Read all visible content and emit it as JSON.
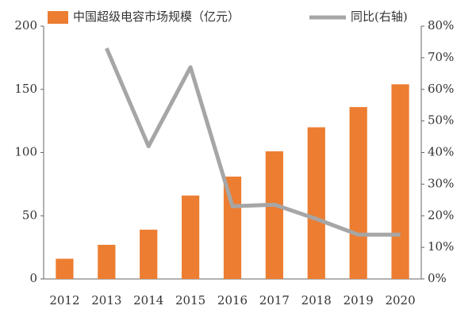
{
  "chart_data": {
    "type": "bar",
    "categories": [
      "2012",
      "2013",
      "2014",
      "2015",
      "2016",
      "2017",
      "2018",
      "2019",
      "2020"
    ],
    "series": [
      {
        "name": "中国超级电容市场规模（亿元）",
        "type": "bar",
        "color": "#ed7d31",
        "values": [
          16,
          27,
          39,
          66,
          81,
          101,
          120,
          136,
          154
        ]
      },
      {
        "name": "同比(右轴)",
        "type": "line",
        "axis": "y2",
        "color": "#a6a6a6",
        "values": [
          null,
          73,
          42,
          67,
          23,
          23.5,
          19,
          14,
          14
        ]
      }
    ],
    "ylim": [
      0,
      200
    ],
    "yticks": [
      0,
      50,
      100,
      150,
      200
    ],
    "y2lim": [
      0,
      80
    ],
    "y2ticks": [
      {
        "value": 0,
        "label": "0%"
      },
      {
        "value": 10,
        "label": "10%"
      },
      {
        "value": 20,
        "label": "20%"
      },
      {
        "value": 30,
        "label": "30%"
      },
      {
        "value": 40,
        "label": "40%"
      },
      {
        "value": 50,
        "label": "50%"
      },
      {
        "value": 60,
        "label": "60%"
      },
      {
        "value": 70,
        "label": "70%"
      },
      {
        "value": 80,
        "label": "80%"
      }
    ]
  }
}
